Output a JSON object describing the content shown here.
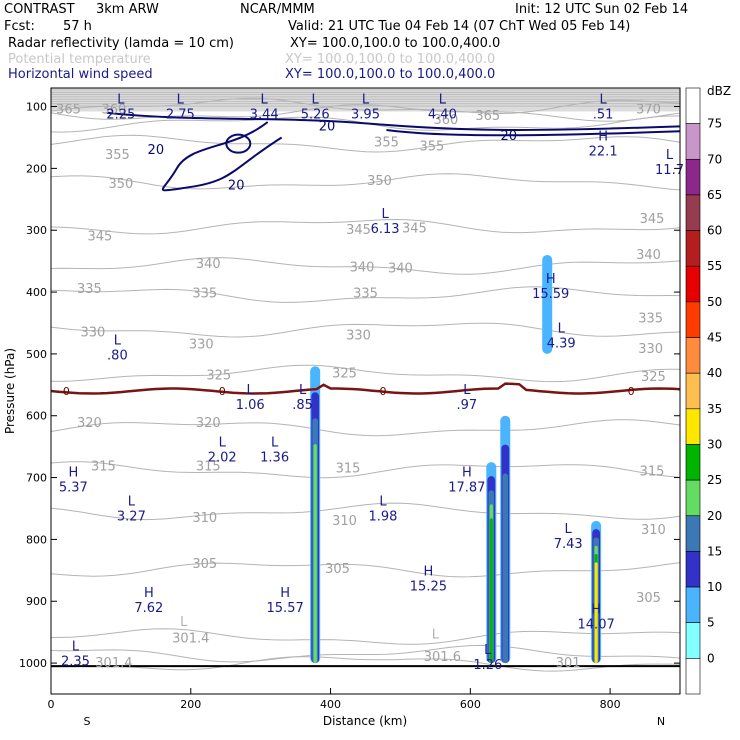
{
  "header": {
    "title": "CONTRAST",
    "model": "3km ARW",
    "org": "NCAR/MMM",
    "init": "Init: 12 UTC Sun 02 Feb 14",
    "fcst_label": "Fcst:",
    "fcst_value": "57 h",
    "valid": "Valid: 21 UTC Tue 04 Feb 14 (07 ChT Wed 05 Feb 14)",
    "fields": [
      {
        "name": "Radar reflectivity (lamda = 10 cm)",
        "xy": "XY= 100.0,100.0 to 100.0,400.0",
        "color": "#000000"
      },
      {
        "name": "Potential temperature",
        "xy": "XY= 100.0,100.0 to 100.0,400.0",
        "color": "#c8c8c8"
      },
      {
        "name": "Horizontal wind speed",
        "xy": "XY= 100.0,100.0 to 100.0,400.0",
        "color": "#1a1a8c"
      }
    ]
  },
  "chart_data": {
    "type": "cross-section",
    "xlabel": "Distance (km)",
    "ylabel": "Pressure (hPa)",
    "xlim": [
      0,
      900
    ],
    "ylim": [
      1050,
      70
    ],
    "x_ticks": [
      "0",
      "200",
      "400",
      "600",
      "800"
    ],
    "x_tick_values": [
      0,
      200,
      400,
      600,
      800
    ],
    "y_ticks": [
      "100",
      "200",
      "300",
      "400",
      "500",
      "600",
      "700",
      "800",
      "900",
      "1000"
    ],
    "y_tick_values": [
      100,
      200,
      300,
      400,
      500,
      600,
      700,
      800,
      900,
      1000
    ],
    "left_end_label": "S",
    "right_end_label": "N",
    "theta_contours": [
      {
        "value": "365",
        "p": 110
      },
      {
        "value": "360",
        "p": 128
      },
      {
        "value": "355",
        "p": 160
      },
      {
        "value": "350",
        "p": 222
      },
      {
        "value": "345",
        "p": 293
      },
      {
        "value": "340",
        "p": 358
      },
      {
        "value": "335",
        "p": 405
      },
      {
        "value": "330",
        "p": 460
      },
      {
        "value": "325",
        "p": 532
      },
      {
        "value": "320",
        "p": 620
      },
      {
        "value": "315",
        "p": 688
      },
      {
        "value": "310",
        "p": 755
      },
      {
        "value": "305",
        "p": 848
      },
      {
        "value": "301.4",
        "p": 958
      },
      {
        "value": "301.6",
        "p": 985
      },
      {
        "value": "301",
        "p": 1000
      },
      {
        "value": "370",
        "p": 100
      }
    ],
    "theta_labels": [
      {
        "text": "365",
        "x": 25,
        "p": 105
      },
      {
        "text": "360",
        "x": 90,
        "p": 105
      },
      {
        "text": "360",
        "x": 565,
        "p": 122
      },
      {
        "text": "365",
        "x": 625,
        "p": 115
      },
      {
        "text": "370",
        "x": 855,
        "p": 105
      },
      {
        "text": "355",
        "x": 95,
        "p": 178
      },
      {
        "text": "355",
        "x": 480,
        "p": 158
      },
      {
        "text": "355",
        "x": 545,
        "p": 165
      },
      {
        "text": "350",
        "x": 100,
        "p": 225
      },
      {
        "text": "350",
        "x": 470,
        "p": 220
      },
      {
        "text": "345",
        "x": 70,
        "p": 310
      },
      {
        "text": "345",
        "x": 440,
        "p": 300
      },
      {
        "text": "345",
        "x": 520,
        "p": 297
      },
      {
        "text": "345",
        "x": 860,
        "p": 282
      },
      {
        "text": "340",
        "x": 225,
        "p": 355
      },
      {
        "text": "340",
        "x": 445,
        "p": 360
      },
      {
        "text": "340",
        "x": 500,
        "p": 362
      },
      {
        "text": "340",
        "x": 855,
        "p": 340
      },
      {
        "text": "335",
        "x": 55,
        "p": 395
      },
      {
        "text": "335",
        "x": 220,
        "p": 402
      },
      {
        "text": "335",
        "x": 450,
        "p": 402
      },
      {
        "text": "335",
        "x": 858,
        "p": 443
      },
      {
        "text": "330",
        "x": 60,
        "p": 465
      },
      {
        "text": "330",
        "x": 215,
        "p": 485
      },
      {
        "text": "330",
        "x": 440,
        "p": 470
      },
      {
        "text": "330",
        "x": 858,
        "p": 492
      },
      {
        "text": "325",
        "x": 240,
        "p": 535
      },
      {
        "text": "325",
        "x": 420,
        "p": 532
      },
      {
        "text": "325",
        "x": 862,
        "p": 537
      },
      {
        "text": "320",
        "x": 55,
        "p": 612
      },
      {
        "text": "320",
        "x": 225,
        "p": 612
      },
      {
        "text": "315",
        "x": 75,
        "p": 682
      },
      {
        "text": "315",
        "x": 225,
        "p": 682
      },
      {
        "text": "315",
        "x": 425,
        "p": 685
      },
      {
        "text": "315",
        "x": 860,
        "p": 690
      },
      {
        "text": "310",
        "x": 220,
        "p": 765
      },
      {
        "text": "310",
        "x": 420,
        "p": 770
      },
      {
        "text": "310",
        "x": 862,
        "p": 785
      },
      {
        "text": "305",
        "x": 220,
        "p": 840
      },
      {
        "text": "305",
        "x": 410,
        "p": 848
      },
      {
        "text": "305",
        "x": 855,
        "p": 895
      },
      {
        "text": "301.4",
        "x": 200,
        "p": 960
      },
      {
        "text": "301.4",
        "x": 90,
        "p": 1000
      },
      {
        "text": "301.6",
        "x": 560,
        "p": 990
      },
      {
        "text": "301",
        "x": 740,
        "p": 1000
      }
    ],
    "wind_contours": [
      {
        "value": "20",
        "p": 120
      },
      {
        "value": "20",
        "p": 150
      }
    ],
    "wind_labels": [
      {
        "text": "20",
        "x": 150,
        "p": 170
      },
      {
        "text": "20",
        "x": 265,
        "p": 228
      },
      {
        "text": "20",
        "x": 395,
        "p": 132
      },
      {
        "text": "20",
        "x": 655,
        "p": 148
      }
    ],
    "freezing_level": {
      "label": "0",
      "p": 560
    },
    "freezing_labels": [
      {
        "text": "0",
        "x": 22,
        "p": 560
      },
      {
        "text": "0",
        "x": 245,
        "p": 560
      },
      {
        "text": "0",
        "x": 475,
        "p": 560
      },
      {
        "text": "0",
        "x": 830,
        "p": 560
      }
    ],
    "hl_markers": [
      {
        "type": "L",
        "value": "2.25",
        "x": 100,
        "p": 95
      },
      {
        "type": "L",
        "value": "2.75",
        "x": 185,
        "p": 95
      },
      {
        "type": "L",
        "value": "3.44",
        "x": 305,
        "p": 95
      },
      {
        "type": "L",
        "value": "5.26",
        "x": 378,
        "p": 95
      },
      {
        "type": "L",
        "value": "3.95",
        "x": 450,
        "p": 95
      },
      {
        "type": "L",
        "value": "4.40",
        "x": 560,
        "p": 95
      },
      {
        "type": "L",
        "value": ".51",
        "x": 790,
        "p": 95
      },
      {
        "type": "H",
        "value": "22.1",
        "x": 790,
        "p": 155
      },
      {
        "type": "L",
        "value": "11.7",
        "x": 885,
        "p": 185
      },
      {
        "type": "L",
        "value": "6.13",
        "x": 478,
        "p": 280
      },
      {
        "type": "H",
        "value": "15.59",
        "x": 715,
        "p": 385
      },
      {
        "type": "L",
        "value": "4.39",
        "x": 730,
        "p": 465
      },
      {
        "type": "L",
        "value": ".80",
        "x": 95,
        "p": 485
      },
      {
        "type": "L",
        "value": "1.06",
        "x": 285,
        "p": 565
      },
      {
        "type": "L",
        "value": ".85",
        "x": 360,
        "p": 565
      },
      {
        "type": "L",
        "value": ".97",
        "x": 595,
        "p": 565
      },
      {
        "type": "L",
        "value": "2.02",
        "x": 245,
        "p": 650
      },
      {
        "type": "L",
        "value": "1.36",
        "x": 320,
        "p": 650
      },
      {
        "type": "H",
        "value": "5.37",
        "x": 32,
        "p": 698
      },
      {
        "type": "L",
        "value": "3.27",
        "x": 115,
        "p": 745
      },
      {
        "type": "L",
        "value": "1.98",
        "x": 475,
        "p": 745
      },
      {
        "type": "H",
        "value": "17.87",
        "x": 595,
        "p": 698
      },
      {
        "type": "L",
        "value": "7.43",
        "x": 740,
        "p": 790
      },
      {
        "type": "H",
        "value": "15.25",
        "x": 540,
        "p": 858
      },
      {
        "type": "H",
        "value": "7.62",
        "x": 140,
        "p": 893
      },
      {
        "type": "H",
        "value": "15.57",
        "x": 335,
        "p": 893
      },
      {
        "type": "H",
        "value": "14.07",
        "x": 780,
        "p": 920
      },
      {
        "type": "L",
        "value": "2.35",
        "x": 35,
        "p": 980
      },
      {
        "type": "L",
        "value": "1.26",
        "x": 625,
        "p": 985
      }
    ],
    "hl_grey_markers": [
      {
        "type": "L",
        "value": "301.4",
        "x": 190,
        "p": 940
      },
      {
        "type": "L",
        "value": "301.6",
        "x": 550,
        "p": 960
      }
    ],
    "reflectivity_cells": [
      {
        "x": 378,
        "p_top": 520,
        "p_bot": 1000,
        "max_dbz": 25
      },
      {
        "x": 630,
        "p_top": 675,
        "p_bot": 1000,
        "max_dbz": 30
      },
      {
        "x": 650,
        "p_top": 600,
        "p_bot": 1000,
        "max_dbz": 20
      },
      {
        "x": 780,
        "p_top": 770,
        "p_bot": 1000,
        "max_dbz": 35
      },
      {
        "x": 710,
        "p_top": 340,
        "p_bot": 500,
        "max_dbz": 10
      }
    ],
    "colorbar": {
      "unit": "dBZ",
      "levels": [
        "75",
        "70",
        "65",
        "60",
        "55",
        "50",
        "45",
        "40",
        "35",
        "30",
        "25",
        "20",
        "15",
        "10",
        "5",
        "0"
      ],
      "colors": [
        "#ffffff",
        "#c896c8",
        "#8c288c",
        "#963c50",
        "#b41e1e",
        "#e60000",
        "#ff3c00",
        "#ff8c3c",
        "#ffbe50",
        "#ffe600",
        "#00b400",
        "#64dc64",
        "#3c78b4",
        "#3232c8",
        "#4bb4ff",
        "#82ffff",
        "#ffffff"
      ]
    }
  }
}
